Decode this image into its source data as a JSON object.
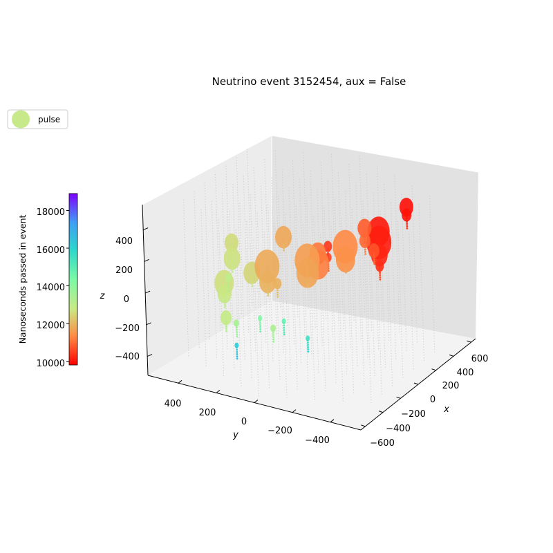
{
  "chart_data": {
    "type": "scatter",
    "projection": "3d",
    "title": "Neutrino event 3152454, aux = False",
    "xlabel": "x",
    "ylabel": "y",
    "zlabel": "z",
    "xlim": [
      -650,
      650
    ],
    "ylim": [
      -560,
      560
    ],
    "zlim": [
      -520,
      560
    ],
    "x_ticks": [
      "600",
      "400",
      "200",
      "0",
      "−200",
      "−400",
      "−600"
    ],
    "y_ticks": [
      "400",
      "200",
      "0",
      "−200",
      "−400"
    ],
    "z_ticks": [
      "400",
      "200",
      "0",
      "−200",
      "−400"
    ],
    "legend": {
      "label": "pulse",
      "placement": "upper-left",
      "marker_color": "#c7e98a"
    },
    "colorbar": {
      "label": "Nanoseconds passed in event",
      "range": [
        9800,
        18900
      ],
      "ticks": [
        "18000",
        "16000",
        "14000",
        "12000",
        "10000"
      ],
      "colormap": "rainbow",
      "stops": [
        "#ff0000",
        "#ff8c45",
        "#c8ea85",
        "#7bf9a6",
        "#2dd8cc",
        "#3f9ef5",
        "#7f00ff"
      ]
    },
    "grid": false,
    "detector_color": "#c8c8c8",
    "pulses": [
      {
        "x": -50,
        "y": -400,
        "z": 420,
        "t": 10050,
        "s": 16
      },
      {
        "x": -50,
        "y": -400,
        "z": 350,
        "t": 10120,
        "s": 18
      },
      {
        "x": -50,
        "y": -400,
        "z": 270,
        "t": 10200,
        "s": 12
      },
      {
        "x": -50,
        "y": -400,
        "z": 200,
        "t": 10300,
        "s": 6
      },
      {
        "x": 120,
        "y": -470,
        "z": 520,
        "t": 9950,
        "s": 10
      },
      {
        "x": 120,
        "y": -470,
        "z": 470,
        "t": 10000,
        "s": 7
      },
      {
        "x": 150,
        "y": -230,
        "z": 300,
        "t": 10800,
        "s": 10
      },
      {
        "x": 150,
        "y": -230,
        "z": 220,
        "t": 10900,
        "s": 8
      },
      {
        "x": -200,
        "y": -200,
        "z": 330,
        "t": 10400,
        "s": 6
      },
      {
        "x": -200,
        "y": -200,
        "z": 260,
        "t": 10500,
        "s": 5
      },
      {
        "x": 0,
        "y": -50,
        "z": 80,
        "t": 11200,
        "s": 16
      },
      {
        "x": 0,
        "y": -50,
        "z": 150,
        "t": 11100,
        "s": 12
      },
      {
        "x": 200,
        "y": -100,
        "z": 120,
        "t": 11300,
        "s": 18
      },
      {
        "x": 200,
        "y": -100,
        "z": 40,
        "t": 11400,
        "s": 14
      },
      {
        "x": 150,
        "y": 80,
        "z": 0,
        "t": 11600,
        "s": 18
      },
      {
        "x": 150,
        "y": 80,
        "z": -80,
        "t": 11700,
        "s": 16
      },
      {
        "x": 60,
        "y": 250,
        "z": -50,
        "t": 11800,
        "s": 18
      },
      {
        "x": 60,
        "y": 250,
        "z": -150,
        "t": 11900,
        "s": 12
      },
      {
        "x": 250,
        "y": 250,
        "z": 50,
        "t": 11750,
        "s": 12
      },
      {
        "x": 100,
        "y": -300,
        "z": 200,
        "t": 10700,
        "s": 8
      },
      {
        "x": -250,
        "y": 50,
        "z": 40,
        "t": 11900,
        "s": 6
      },
      {
        "x": 300,
        "y": 550,
        "z": -100,
        "t": 12600,
        "s": 10
      },
      {
        "x": 300,
        "y": 550,
        "z": -200,
        "t": 12700,
        "s": 12
      },
      {
        "x": 100,
        "y": 500,
        "z": -250,
        "t": 12650,
        "s": 14
      },
      {
        "x": 100,
        "y": 500,
        "z": -320,
        "t": 12800,
        "s": 10
      },
      {
        "x": 200,
        "y": 400,
        "z": -200,
        "t": 12500,
        "s": 12
      },
      {
        "x": -100,
        "y": 400,
        "z": -350,
        "t": 12900,
        "s": 8
      },
      {
        "x": -300,
        "y": 250,
        "z": -250,
        "t": 13500,
        "s": 4
      },
      {
        "x": -350,
        "y": 100,
        "z": -150,
        "t": 14300,
        "s": 3
      },
      {
        "x": -400,
        "y": -50,
        "z": -100,
        "t": 14800,
        "s": 3
      },
      {
        "x": -350,
        "y": -150,
        "z": -200,
        "t": 15500,
        "s": 3
      },
      {
        "x": -200,
        "y": 300,
        "z": -450,
        "t": 16200,
        "s": 3
      },
      {
        "x": 0,
        "y": 200,
        "z": -400,
        "t": 13400,
        "s": 4
      },
      {
        "x": 250,
        "y": 550,
        "z": -300,
        "t": 13000,
        "s": 5
      }
    ]
  }
}
